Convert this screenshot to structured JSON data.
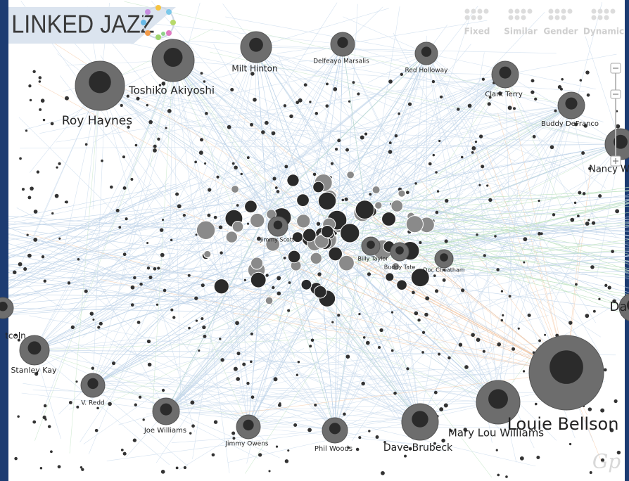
{
  "header": {
    "logo": "LINKED JAZZ"
  },
  "toolbar": {
    "buttons": [
      "Fixed",
      "Similar",
      "Gender",
      "Dynamic"
    ]
  },
  "nodes": [
    {
      "label": "Roy Haynes"
    },
    {
      "label": "Toshiko Akiyoshi"
    },
    {
      "label": "Milt Hinton"
    },
    {
      "label": "Delfeayo Marsalis"
    },
    {
      "label": "Red Holloway"
    },
    {
      "label": "Clark Terry"
    },
    {
      "label": "Buddy DeFranco"
    },
    {
      "label": "Nancy W"
    },
    {
      "label": "Stanley Kay"
    },
    {
      "label": "V. Redd"
    },
    {
      "label": "Joe Williams"
    },
    {
      "label": "Jimmy Owens"
    },
    {
      "label": "Phil Woods"
    },
    {
      "label": "Dave Brubeck"
    },
    {
      "label": "Mary Lou Williams"
    },
    {
      "label": "Louie Bellson"
    },
    {
      "label": "Jimmy Scott"
    },
    {
      "label": "Billy Taylor"
    },
    {
      "label": "Buddy Tate"
    },
    {
      "label": "Doc Cheatham"
    },
    {
      "label": "tcoln"
    },
    {
      "label": "Da"
    }
  ],
  "watermark": "Gp"
}
